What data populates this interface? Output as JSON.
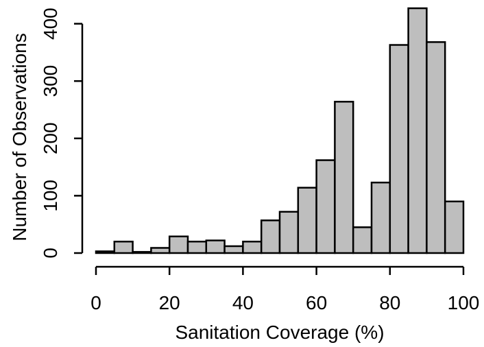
{
  "chart_data": {
    "type": "bar",
    "title": "",
    "xlabel": "Sanitation Coverage (%)",
    "ylabel": "Number of Observations",
    "xlim": [
      0,
      100
    ],
    "ylim": [
      0,
      430
    ],
    "xticks": [
      "0",
      "20",
      "40",
      "60",
      "80",
      "100"
    ],
    "yticks": [
      "0",
      "100",
      "200",
      "300",
      "400"
    ],
    "bins": [
      [
        0,
        5
      ],
      [
        5,
        10
      ],
      [
        10,
        15
      ],
      [
        15,
        20
      ],
      [
        20,
        25
      ],
      [
        25,
        30
      ],
      [
        30,
        35
      ],
      [
        35,
        40
      ],
      [
        40,
        45
      ],
      [
        45,
        50
      ],
      [
        50,
        55
      ],
      [
        55,
        60
      ],
      [
        60,
        65
      ],
      [
        65,
        70
      ],
      [
        70,
        75
      ],
      [
        75,
        80
      ],
      [
        80,
        85
      ],
      [
        85,
        90
      ],
      [
        90,
        95
      ],
      [
        95,
        100
      ]
    ],
    "values": [
      3,
      20,
      2,
      9,
      29,
      20,
      22,
      12,
      20,
      57,
      72,
      114,
      162,
      264,
      45,
      123,
      363,
      427,
      368,
      90
    ],
    "grid": false,
    "bar_color": "#bebebe",
    "edge_color": "#000000"
  }
}
